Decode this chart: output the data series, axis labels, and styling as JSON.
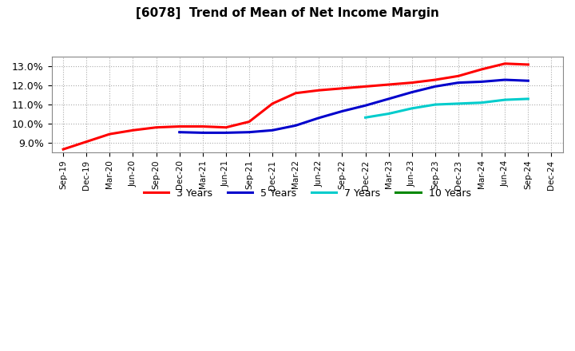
{
  "title": "[6078]  Trend of Mean of Net Income Margin",
  "background_color": "#ffffff",
  "plot_background_color": "#ffffff",
  "grid_color": "#aaaaaa",
  "x_labels": [
    "Sep-19",
    "Dec-19",
    "Mar-20",
    "Jun-20",
    "Sep-20",
    "Dec-20",
    "Mar-21",
    "Jun-21",
    "Sep-21",
    "Dec-21",
    "Mar-22",
    "Jun-22",
    "Sep-22",
    "Dec-22",
    "Mar-23",
    "Jun-23",
    "Sep-23",
    "Dec-23",
    "Mar-24",
    "Jun-24",
    "Sep-24",
    "Dec-24"
  ],
  "series": {
    "3 Years": {
      "color": "#ff0000",
      "data_x": [
        0,
        1,
        2,
        3,
        4,
        5,
        6,
        7,
        8,
        9,
        10,
        11,
        12,
        13,
        14,
        15,
        16,
        17,
        18,
        19,
        20
      ],
      "data_y": [
        8.65,
        9.05,
        9.45,
        9.65,
        9.8,
        9.85,
        9.85,
        9.8,
        10.1,
        11.05,
        11.6,
        11.75,
        11.85,
        11.95,
        12.05,
        12.15,
        12.3,
        12.5,
        12.85,
        13.15,
        13.1
      ]
    },
    "5 Years": {
      "color": "#0000cc",
      "data_x": [
        5,
        6,
        7,
        8,
        9,
        10,
        11,
        12,
        13,
        14,
        15,
        16,
        17,
        18,
        19,
        20
      ],
      "data_y": [
        9.55,
        9.52,
        9.52,
        9.55,
        9.65,
        9.9,
        10.3,
        10.65,
        10.95,
        11.3,
        11.65,
        11.95,
        12.15,
        12.2,
        12.3,
        12.25
      ]
    },
    "7 Years": {
      "color": "#00cccc",
      "data_x": [
        13,
        14,
        15,
        16,
        17,
        18,
        19,
        20
      ],
      "data_y": [
        10.32,
        10.52,
        10.8,
        11.0,
        11.05,
        11.1,
        11.25,
        11.3
      ]
    },
    "10 Years": {
      "color": "#008800",
      "data_x": [],
      "data_y": []
    }
  },
  "ylim": [
    8.5,
    13.5
  ],
  "yticks": [
    9.0,
    10.0,
    11.0,
    12.0,
    13.0
  ],
  "legend_labels": [
    "3 Years",
    "5 Years",
    "7 Years",
    "10 Years"
  ],
  "legend_colors": [
    "#ff0000",
    "#0000cc",
    "#00cccc",
    "#008800"
  ]
}
